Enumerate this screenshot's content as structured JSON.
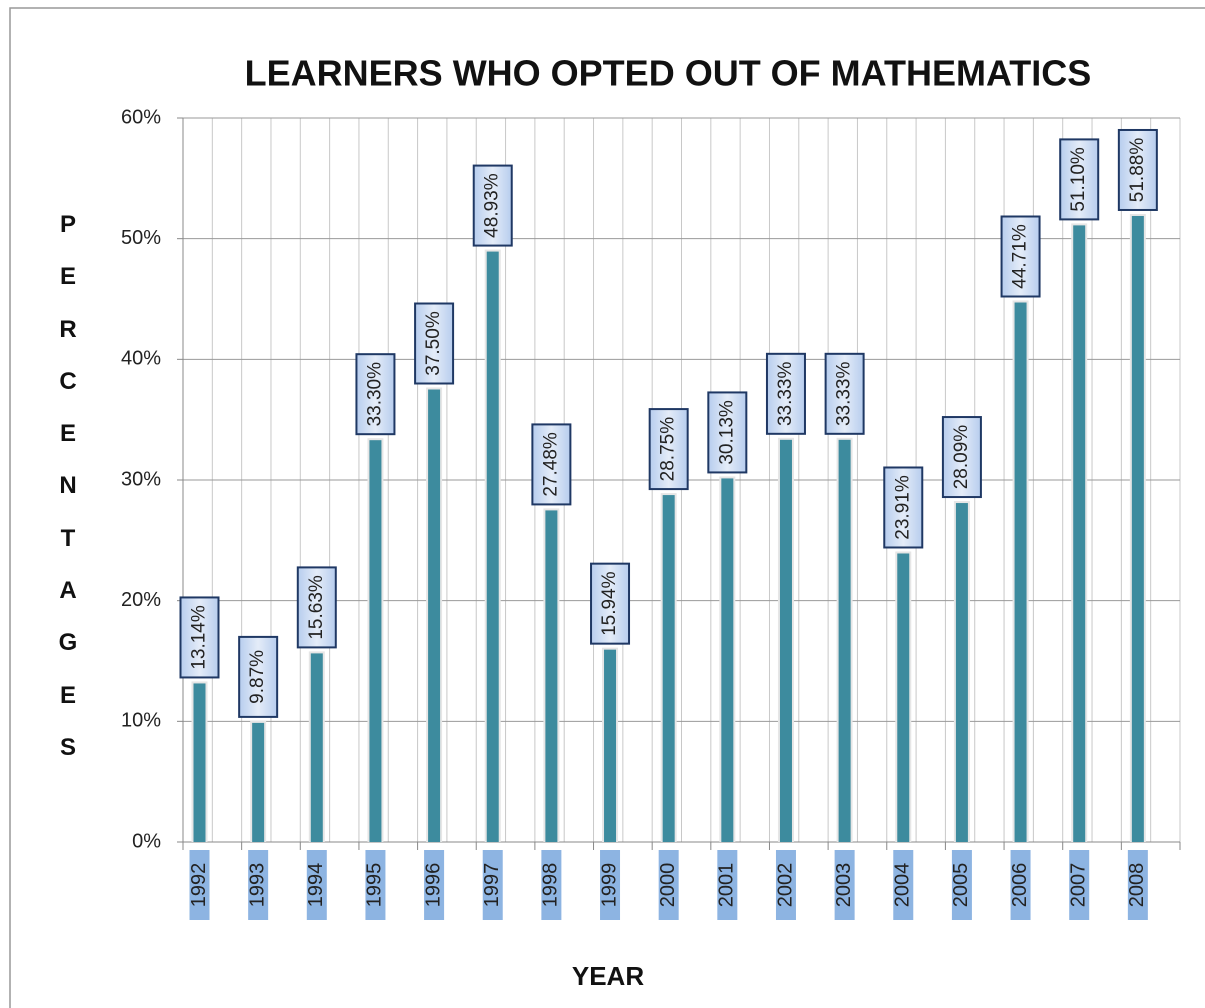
{
  "chart_data": {
    "type": "bar",
    "title": "LEARNERS WHO OPTED OUT OF MATHEMATICS",
    "x_label": "YEAR",
    "y_label": "PERCENTAGES",
    "categories": [
      "1992",
      "1993",
      "1994",
      "1995",
      "1996",
      "1997",
      "1998",
      "1999",
      "2000",
      "2001",
      "2002",
      "2003",
      "2004",
      "2005",
      "2006",
      "2007",
      "2008"
    ],
    "values": [
      13.14,
      9.87,
      15.63,
      33.3,
      37.5,
      48.93,
      27.48,
      15.94,
      28.75,
      30.13,
      33.33,
      33.33,
      23.91,
      28.09,
      44.71,
      51.1,
      51.88
    ],
    "value_labels": [
      "13.14%",
      "9.87%",
      "15.63%",
      "33.30%",
      "37.50%",
      "48.93%",
      "27.48%",
      "15.94%",
      "28.75%",
      "30.13%",
      "33.33%",
      "33.33%",
      "23.91%",
      "28.09%",
      "44.71%",
      "51.10%",
      "51.88%"
    ],
    "color": "#3d8b9e",
    "ylim": [
      0,
      60
    ],
    "yticks": [
      {
        "value": 0,
        "label": "0%"
      },
      {
        "value": 10,
        "label": "10%"
      },
      {
        "value": 20,
        "label": "20%"
      },
      {
        "value": 30,
        "label": "30%"
      },
      {
        "value": 40,
        "label": "40%"
      },
      {
        "value": 50,
        "label": "50%"
      },
      {
        "value": 60,
        "label": "60%"
      }
    ],
    "grid": true
  }
}
